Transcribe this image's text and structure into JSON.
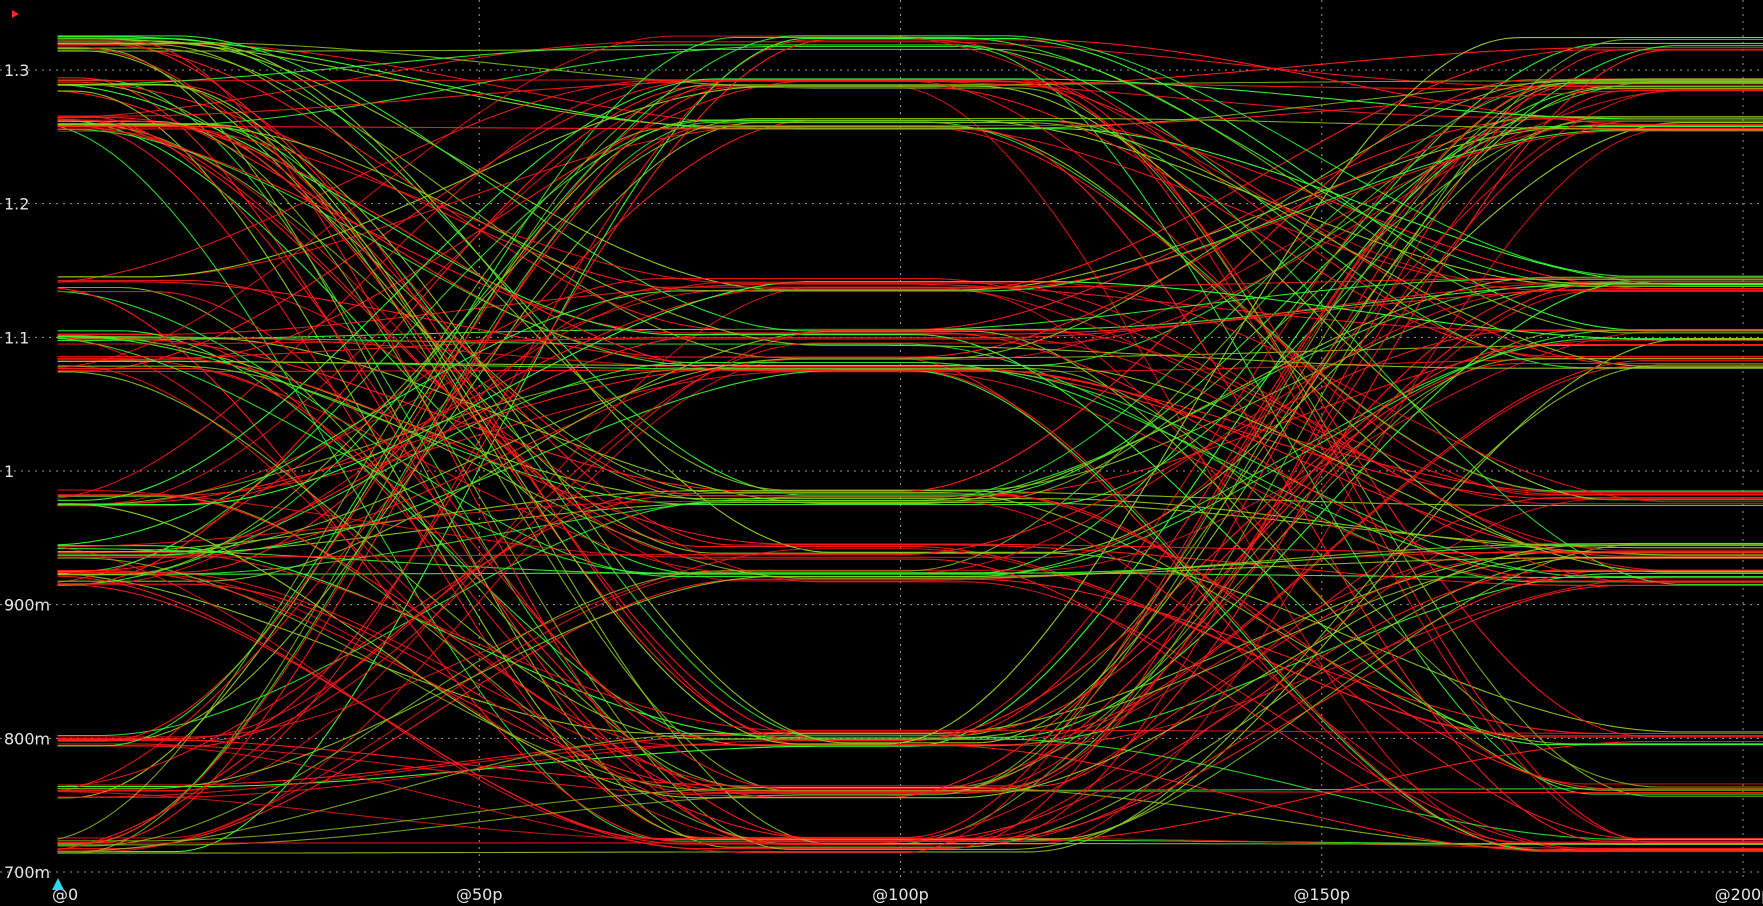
{
  "chart_data": {
    "type": "line",
    "title": "",
    "xlabel": "",
    "ylabel": "",
    "x_unit_seconds": 1e-12,
    "xlim": [
      0,
      210
    ],
    "ylim": [
      0.692,
      1.335
    ],
    "grid": true,
    "legend": "none",
    "background": "#000000",
    "series_colors": [
      "#ff1a1a",
      "#33ff33",
      "#8fce1f"
    ],
    "x_ticks": [
      {
        "value": 0,
        "label": "@0"
      },
      {
        "value": 50,
        "label": "@50p"
      },
      {
        "value": 100,
        "label": "@100p"
      },
      {
        "value": 150,
        "label": "@150p"
      },
      {
        "value": 200,
        "label": "@200p"
      }
    ],
    "y_ticks": [
      {
        "value": 0.7,
        "label": "700m"
      },
      {
        "value": 0.8,
        "label": "800m"
      },
      {
        "value": 0.9,
        "label": "900m"
      },
      {
        "value": 1.0,
        "label": "1"
      },
      {
        "value": 1.1,
        "label": "1.1"
      },
      {
        "value": 1.2,
        "label": "1.2"
      },
      {
        "value": 1.3,
        "label": "1.3"
      }
    ],
    "levels": [
      0.72,
      0.76,
      0.8,
      0.92,
      0.94,
      0.98,
      1.08,
      1.1,
      1.14,
      1.26,
      1.29,
      1.32
    ],
    "ui_period_ps": 100,
    "transition_centers_ps": [
      45,
      145
    ],
    "transition_width_ps": 75
  }
}
